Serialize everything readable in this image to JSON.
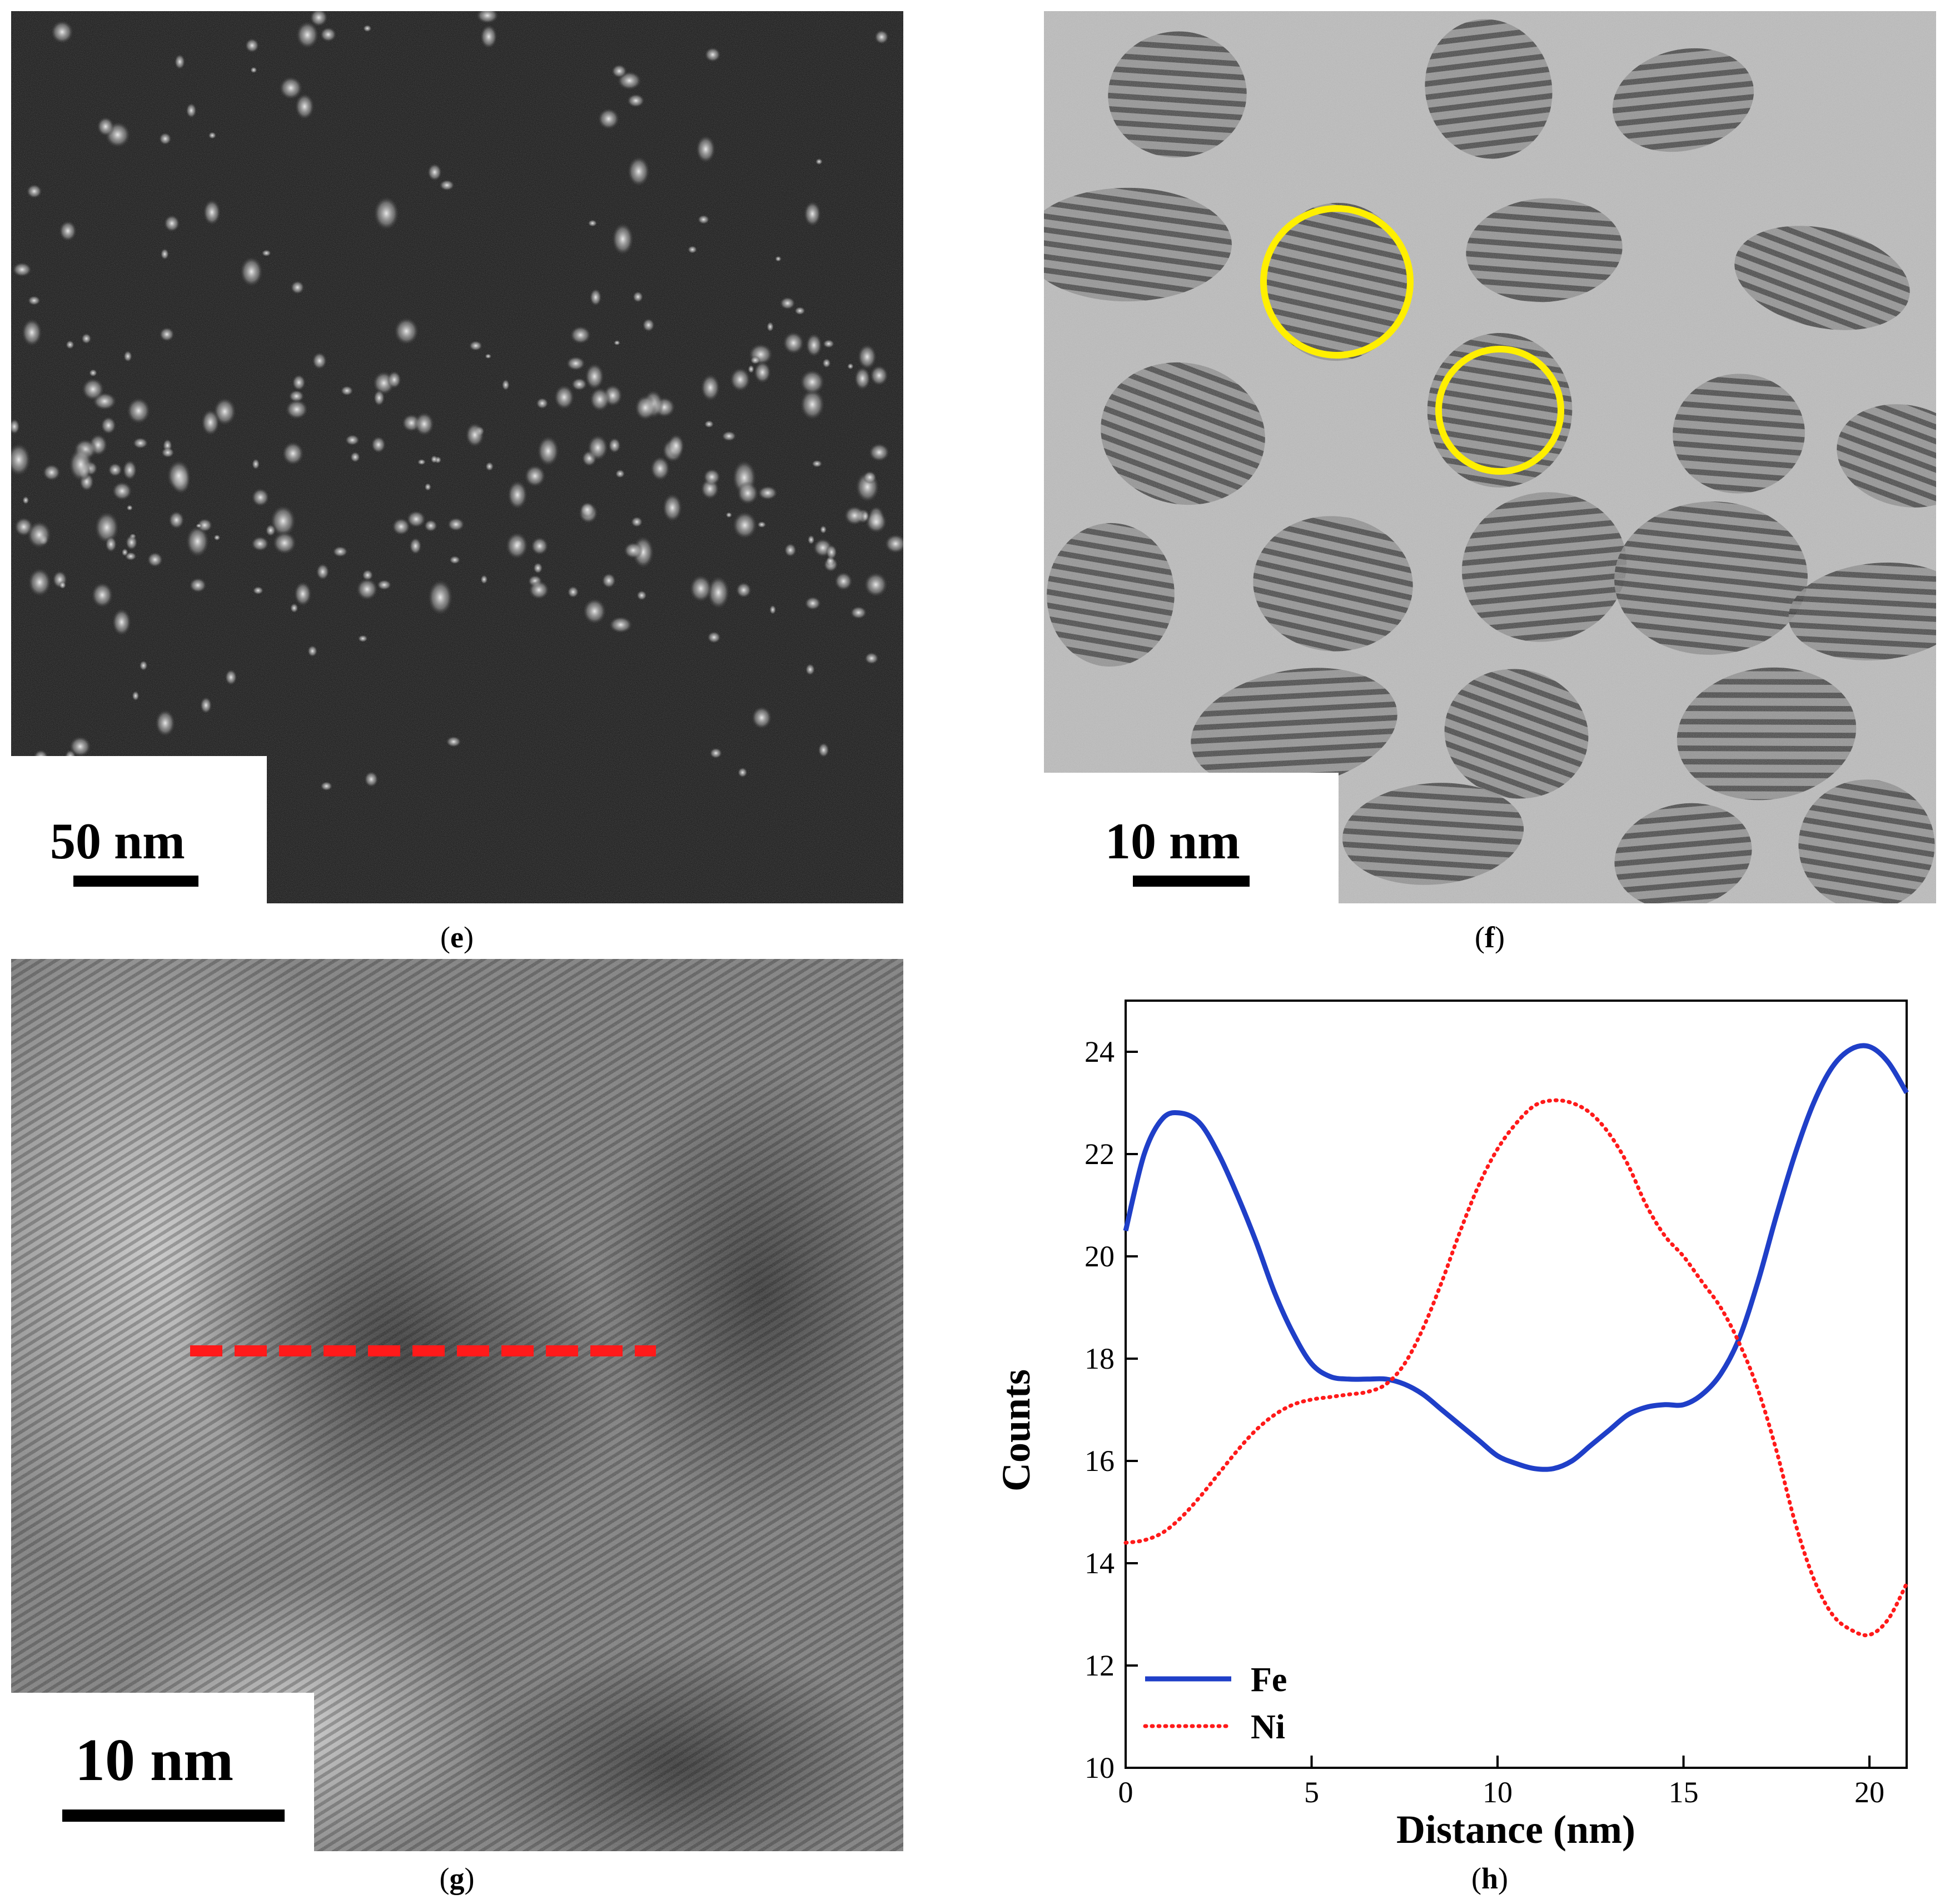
{
  "panels": {
    "e": {
      "label": "e",
      "scale_bar": "50 nm"
    },
    "f": {
      "label": "f",
      "scale_bar": "10 nm"
    },
    "g": {
      "label": "g",
      "scale_bar": "10 nm"
    },
    "h": {
      "label": "h"
    }
  },
  "colors": {
    "fe_line": "#1f3fc8",
    "ni_line": "#ff1a1a",
    "circle": "#ffef00",
    "dash": "#ff1a1a"
  },
  "chart_data": {
    "type": "line",
    "title": "",
    "xlabel": "Distance (nm)",
    "ylabel": "Counts",
    "xlim": [
      0,
      21
    ],
    "ylim": [
      10,
      25
    ],
    "xticks": [
      0,
      5,
      10,
      15,
      20
    ],
    "yticks": [
      10,
      12,
      14,
      16,
      18,
      20,
      22,
      24
    ],
    "grid": false,
    "legend_position": "bottom-left",
    "series": [
      {
        "name": "Fe",
        "style": "solid",
        "x": [
          0,
          0.5,
          1,
          1.5,
          2,
          2.5,
          3,
          3.5,
          4,
          4.5,
          5,
          5.5,
          6,
          6.5,
          7,
          7.5,
          8,
          8.5,
          9,
          9.5,
          10,
          10.5,
          11,
          11.5,
          12,
          12.5,
          13,
          13.5,
          14,
          14.5,
          15,
          15.5,
          16,
          16.5,
          17,
          17.5,
          18,
          18.5,
          19,
          19.5,
          20,
          20.5,
          21
        ],
        "values": [
          20.5,
          22.0,
          22.7,
          22.8,
          22.6,
          22.0,
          21.2,
          20.3,
          19.3,
          18.5,
          17.9,
          17.65,
          17.6,
          17.6,
          17.6,
          17.5,
          17.3,
          17.0,
          16.7,
          16.4,
          16.1,
          15.95,
          15.85,
          15.85,
          16.0,
          16.3,
          16.6,
          16.9,
          17.05,
          17.1,
          17.1,
          17.3,
          17.7,
          18.4,
          19.5,
          20.8,
          22.0,
          23.0,
          23.7,
          24.05,
          24.1,
          23.8,
          23.2
        ]
      },
      {
        "name": "Ni",
        "style": "dotted",
        "x": [
          0,
          0.5,
          1,
          1.5,
          2,
          2.5,
          3,
          3.5,
          4,
          4.5,
          5,
          5.5,
          6,
          6.5,
          7,
          7.5,
          8,
          8.5,
          9,
          9.5,
          10,
          10.5,
          11,
          11.5,
          12,
          12.5,
          13,
          13.5,
          14,
          14.5,
          15,
          15.5,
          16,
          16.5,
          17,
          17.5,
          18,
          18.5,
          19,
          19.5,
          20,
          20.5,
          21
        ],
        "values": [
          14.4,
          14.45,
          14.6,
          14.9,
          15.3,
          15.75,
          16.2,
          16.6,
          16.9,
          17.1,
          17.2,
          17.25,
          17.3,
          17.35,
          17.5,
          17.9,
          18.6,
          19.5,
          20.5,
          21.4,
          22.1,
          22.6,
          22.95,
          23.05,
          23.0,
          22.8,
          22.4,
          21.8,
          21.0,
          20.4,
          20.0,
          19.5,
          19.0,
          18.3,
          17.4,
          16.2,
          14.8,
          13.7,
          13.0,
          12.7,
          12.6,
          12.9,
          13.6
        ]
      }
    ]
  }
}
